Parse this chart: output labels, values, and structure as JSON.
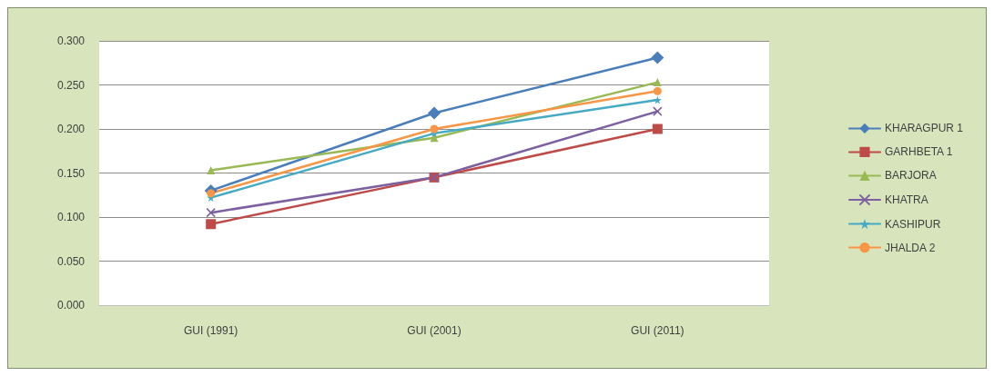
{
  "chart_data": {
    "type": "line",
    "categories": [
      "GUI (1991)",
      "GUI (2001)",
      "GUI (2011)"
    ],
    "series": [
      {
        "name": "KHARAGPUR 1",
        "color": "#4a7ebb",
        "marker": "diamond",
        "values": [
          0.13,
          0.218,
          0.281
        ]
      },
      {
        "name": "GARHBETA 1",
        "color": "#be4b48",
        "marker": "square",
        "values": [
          0.092,
          0.145,
          0.2
        ]
      },
      {
        "name": "BARJORA",
        "color": "#98b954",
        "marker": "triangle",
        "values": [
          0.153,
          0.19,
          0.253
        ]
      },
      {
        "name": "KHATRA",
        "color": "#7d60a0",
        "marker": "cross",
        "values": [
          0.105,
          0.145,
          0.22
        ]
      },
      {
        "name": "KASHIPUR",
        "color": "#46aac5",
        "marker": "star",
        "values": [
          0.122,
          0.195,
          0.233
        ]
      },
      {
        "name": "JHALDA 2",
        "color": "#f79646",
        "marker": "circle",
        "values": [
          0.127,
          0.2,
          0.243
        ]
      }
    ],
    "ylim": [
      0,
      0.3
    ],
    "yticks": [
      {
        "value": 0,
        "label": "0.000"
      },
      {
        "value": 0.05,
        "label": "0.050"
      },
      {
        "value": 0.1,
        "label": "0.100"
      },
      {
        "value": 0.15,
        "label": "0.150"
      },
      {
        "value": 0.2,
        "label": "0.200"
      },
      {
        "value": 0.25,
        "label": "0.250"
      },
      {
        "value": 0.3,
        "label": "0.300"
      }
    ],
    "grid": "y",
    "legend": "right",
    "line_style": "solid"
  }
}
